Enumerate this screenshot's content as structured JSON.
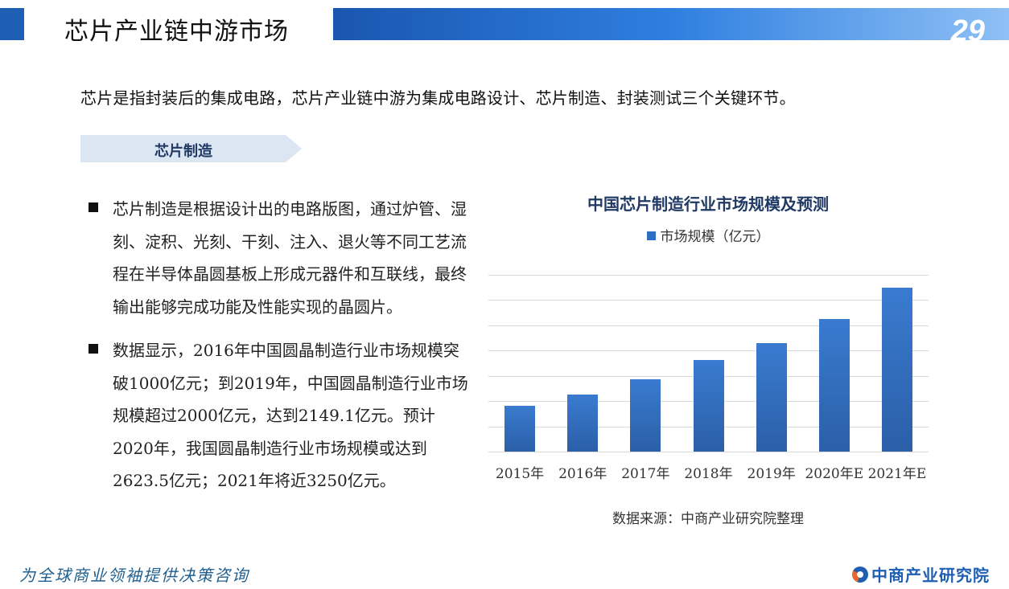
{
  "header": {
    "title": "芯片产业链中游市场",
    "page_number": "29"
  },
  "intro": "芯片是指封装后的集成电路，芯片产业链中游为集成电路设计、芯片制造、封装测试三个关键环节。",
  "section": {
    "tag": "芯片制造"
  },
  "bullets": [
    "芯片制造是根据设计出的电路版图，通过炉管、湿刻、淀积、光刻、干刻、注入、退火等不同工艺流程在半导体晶圆基板上形成元器件和互联线，最终输出能够完成功能及性能实现的晶圆片。",
    "数据显示，2016年中国圆晶制造行业市场规模突破1000亿元；到2019年，中国圆晶制造行业市场规模超过2000亿元，达到2149.1亿元。预计2020年，我国圆晶制造行业市场规模或达到2623.5亿元；2021年将近3250亿元。"
  ],
  "chart": {
    "title": "中国芯片制造行业市场规模及预测",
    "legend": "市场规模（亿元）",
    "source": "数据来源：中商产业研究院整理"
  },
  "chart_data": {
    "type": "bar",
    "title": "中国芯片制造行业市场规模及预测",
    "categories": [
      "2015年",
      "2016年",
      "2017年",
      "2018年",
      "2019年",
      "2020年E",
      "2021年E"
    ],
    "series": [
      {
        "name": "市场规模（亿元）",
        "values": [
          900,
          1126,
          1430,
          1818,
          2149.1,
          2623.5,
          3250
        ],
        "color": "#2e6fc4"
      }
    ],
    "xlabel": "",
    "ylabel": "",
    "ylim": [
      0,
      3500
    ],
    "grid": true,
    "gridline_step": 500,
    "legend_position": "top",
    "axis_labels_visible": false
  },
  "footer": {
    "slogan": "为全球商业领袖提供决策咨询",
    "logo_text": "中商产业研究院"
  },
  "colors": {
    "brand_blue": "#1e5fb4",
    "bar_blue": "#2e6fc4",
    "title_navy": "#1f3864",
    "tag_bg": "#dce6f2"
  }
}
